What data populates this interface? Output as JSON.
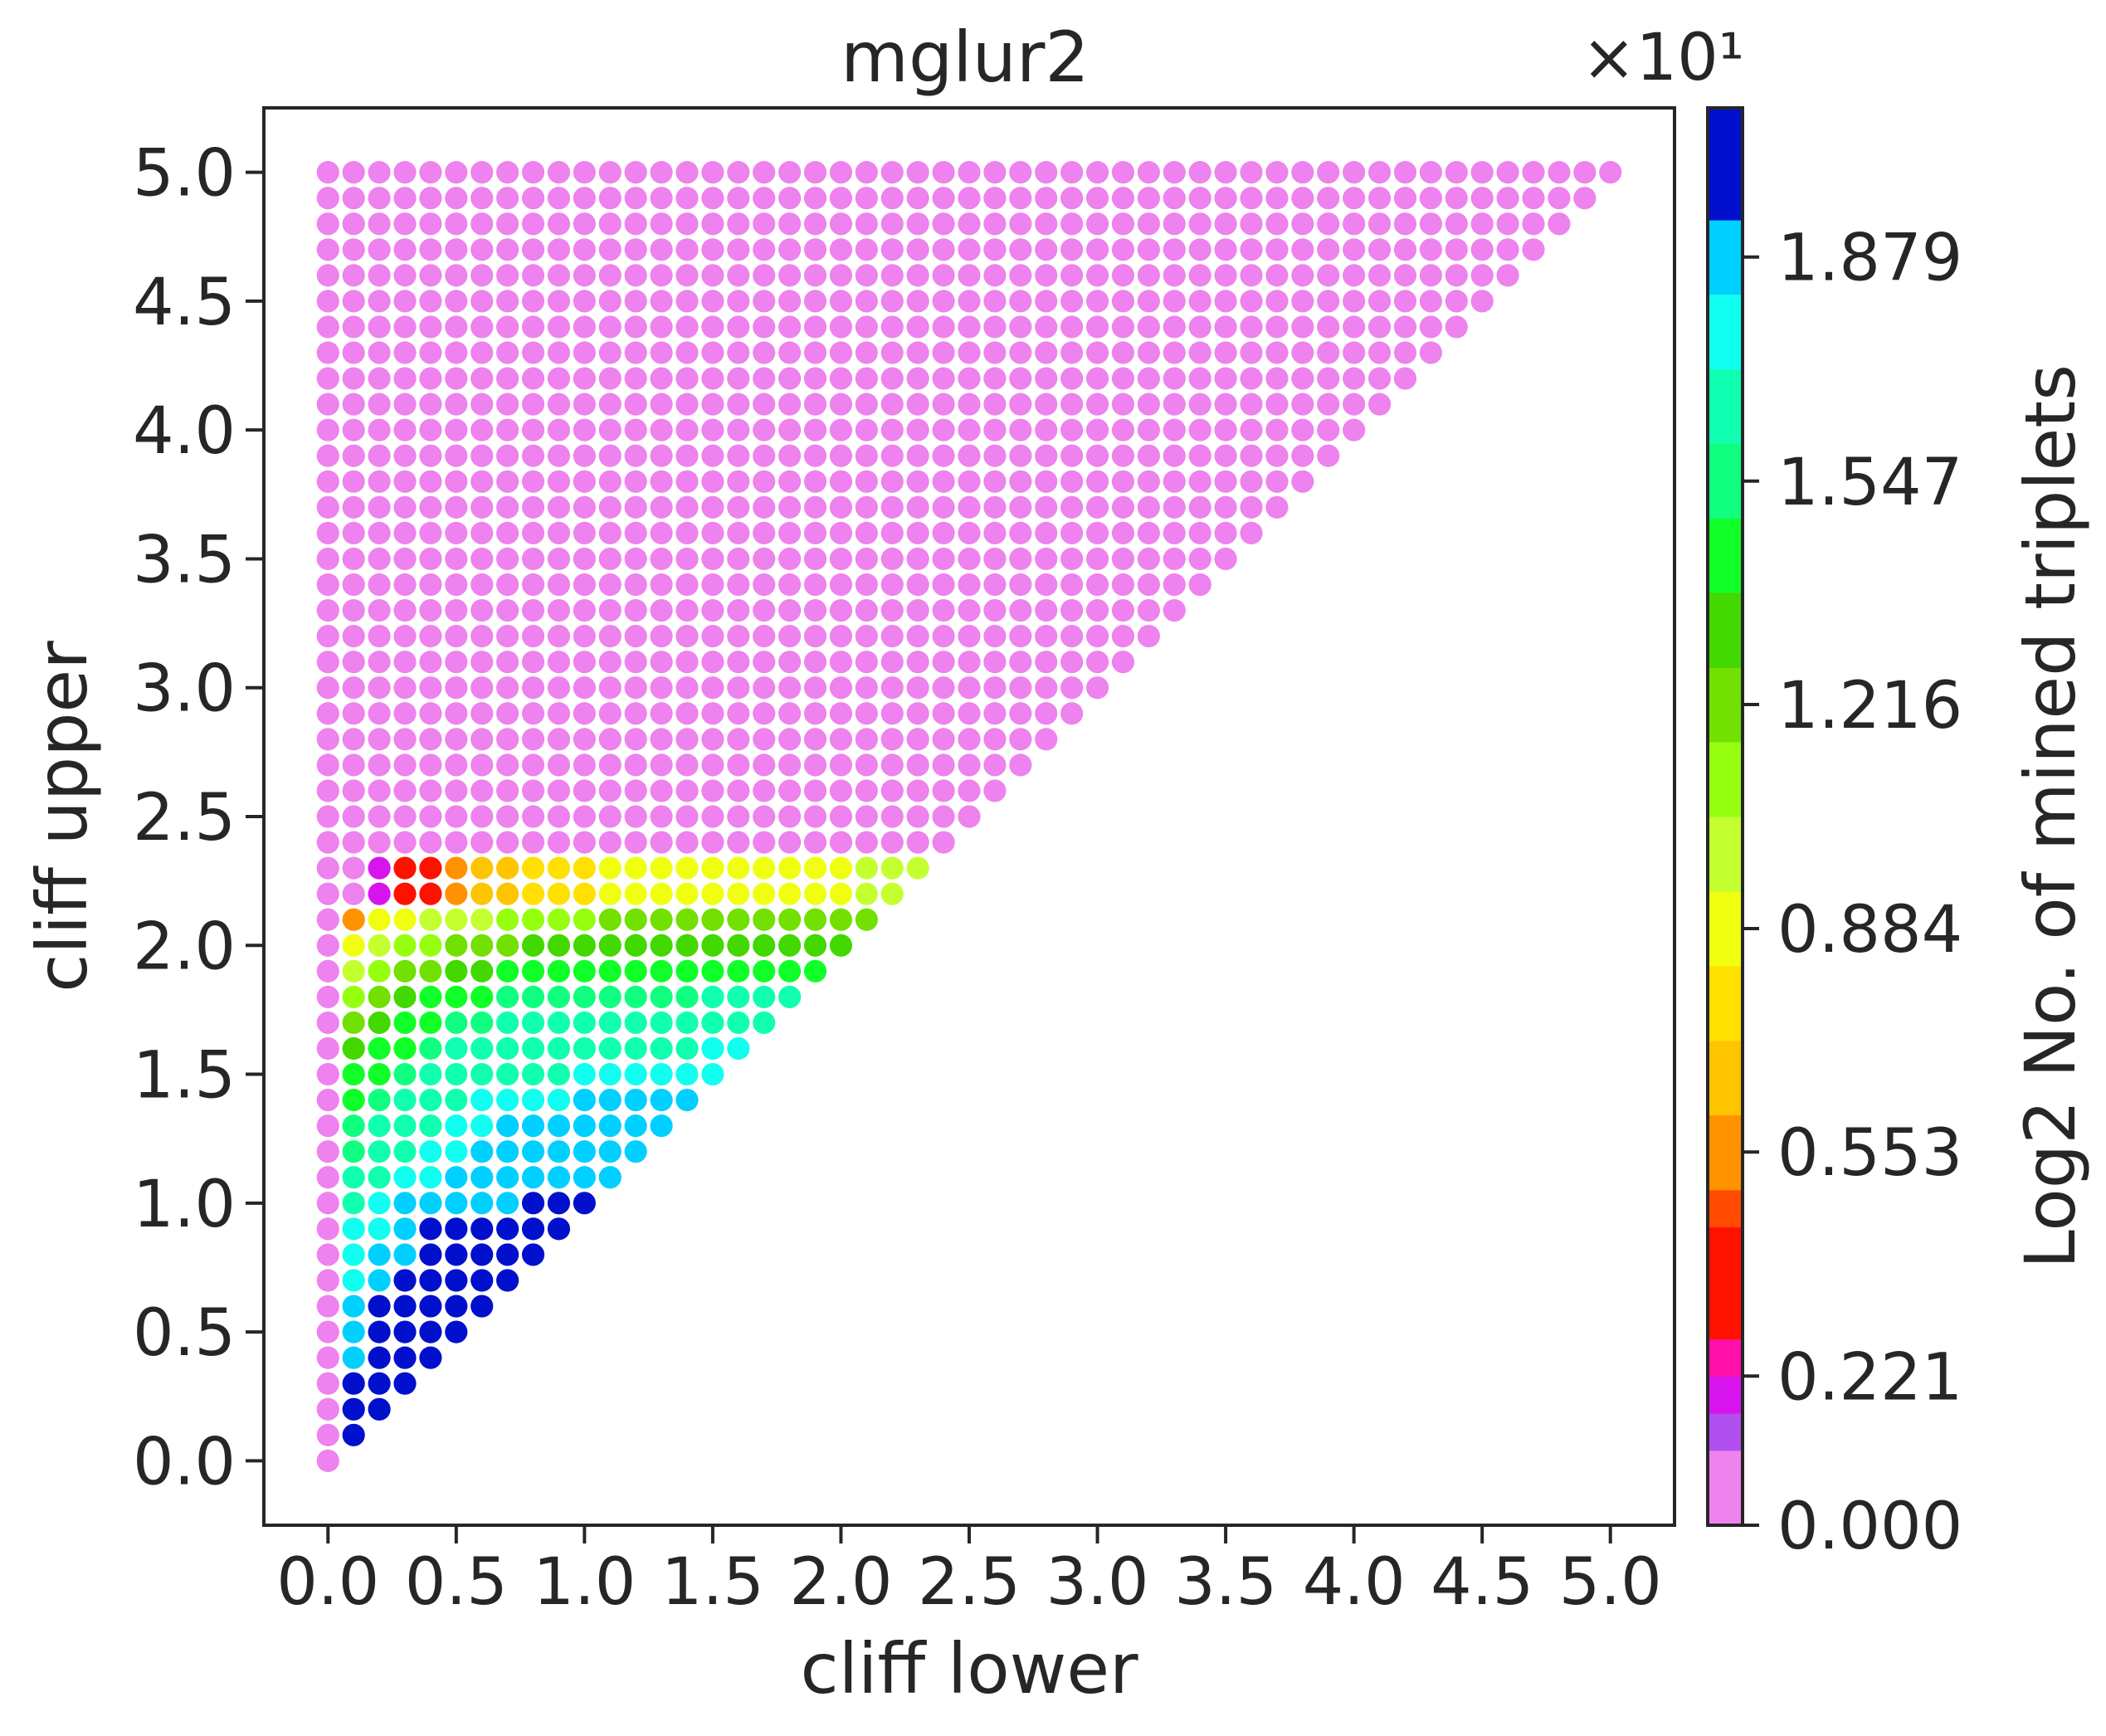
{
  "chart_data": {
    "type": "scatter",
    "title": "mglur2",
    "xlabel": "cliff lower",
    "ylabel": "cliff upper",
    "xlim": [
      -0.25,
      5.25
    ],
    "ylim": [
      -0.25,
      5.25
    ],
    "x_ticks": [
      0.0,
      0.5,
      1.0,
      1.5,
      2.0,
      2.5,
      3.0,
      3.5,
      4.0,
      4.5,
      5.0
    ],
    "x_tick_labels": [
      "0.0",
      "0.5",
      "1.0",
      "1.5",
      "2.0",
      "2.5",
      "3.0",
      "3.5",
      "4.0",
      "4.5",
      "5.0"
    ],
    "y_ticks": [
      0.0,
      0.5,
      1.0,
      1.5,
      2.0,
      2.5,
      3.0,
      3.5,
      4.0,
      4.5,
      5.0
    ],
    "y_tick_labels": [
      "0.0",
      "0.5",
      "1.0",
      "1.5",
      "2.0",
      "2.5",
      "3.0",
      "3.5",
      "4.0",
      "4.5",
      "5.0"
    ],
    "grid": false,
    "marker_step": 0.1,
    "point_set": "all pairs with 0 <= cliff lower <= cliff upper <= 5.0 on a 0.1 grid; points outside the listed rows have value 0.000",
    "colored_rows": [
      {
        "y": 0.1,
        "x_start": 0.1,
        "values": [
          19.8
        ]
      },
      {
        "y": 0.2,
        "x_start": 0.1,
        "values": [
          19.8,
          19.8
        ]
      },
      {
        "y": 0.3,
        "x_start": 0.1,
        "values": [
          19.8,
          19.8,
          19.8
        ]
      },
      {
        "y": 0.4,
        "x_start": 0.1,
        "values": [
          18.6,
          19.8,
          19.8,
          19.8
        ]
      },
      {
        "y": 0.5,
        "x_start": 0.1,
        "values": [
          18.6,
          19.8,
          19.8,
          19.8,
          19.8
        ]
      },
      {
        "y": 0.6,
        "x_start": 0.1,
        "values": [
          18.6,
          19.8,
          19.8,
          19.8,
          19.8,
          19.8
        ]
      },
      {
        "y": 0.7,
        "x_start": 0.1,
        "values": [
          17.5,
          18.6,
          19.8,
          19.8,
          19.8,
          19.8,
          19.8
        ]
      },
      {
        "y": 0.8,
        "x_start": 0.1,
        "values": [
          17.5,
          18.6,
          18.6,
          19.8,
          19.8,
          19.8,
          19.8,
          19.8
        ]
      },
      {
        "y": 0.9,
        "x_start": 0.1,
        "values": [
          17.5,
          17.5,
          18.6,
          19.8,
          19.8,
          19.8,
          19.8,
          19.8,
          19.8
        ]
      },
      {
        "y": 1.0,
        "x_start": 0.1,
        "values": [
          16.6,
          17.5,
          18.6,
          18.6,
          18.6,
          18.6,
          18.6,
          19.8,
          19.8,
          19.8
        ]
      },
      {
        "y": 1.1,
        "x_start": 0.1,
        "values": [
          16.1,
          16.6,
          17.5,
          17.5,
          18.6,
          18.6,
          18.6,
          18.6,
          18.6,
          18.6,
          18.6
        ]
      },
      {
        "y": 1.2,
        "x_start": 0.1,
        "values": [
          15.5,
          16.1,
          16.6,
          17.5,
          17.5,
          18.6,
          18.6,
          18.6,
          18.6,
          18.6,
          18.6,
          18.6
        ]
      },
      {
        "y": 1.3,
        "x_start": 0.1,
        "values": [
          15.5,
          16.1,
          16.6,
          16.6,
          17.5,
          17.5,
          18.6,
          18.6,
          18.6,
          18.6,
          18.6,
          18.6,
          18.6
        ]
      },
      {
        "y": 1.4,
        "x_start": 0.1,
        "values": [
          14.9,
          15.5,
          16.1,
          16.6,
          16.6,
          17.5,
          17.5,
          17.5,
          17.5,
          18.6,
          18.6,
          18.6,
          18.6,
          18.6
        ]
      },
      {
        "y": 1.5,
        "x_start": 0.1,
        "values": [
          14.4,
          14.9,
          15.5,
          16.1,
          16.1,
          16.1,
          16.6,
          16.6,
          16.6,
          17.5,
          17.5,
          17.5,
          17.5,
          17.5,
          17.5
        ]
      },
      {
        "y": 1.6,
        "x_start": 0.1,
        "values": [
          13.8,
          14.4,
          14.9,
          15.5,
          16.1,
          16.1,
          16.1,
          16.1,
          16.1,
          16.1,
          16.1,
          16.6,
          16.6,
          16.6,
          17.5,
          17.5
        ]
      },
      {
        "y": 1.7,
        "x_start": 0.1,
        "values": [
          12.7,
          13.8,
          14.4,
          14.9,
          15.5,
          15.5,
          16.1,
          16.1,
          16.1,
          16.1,
          16.1,
          16.1,
          16.1,
          16.1,
          16.1,
          16.1,
          16.1
        ]
      },
      {
        "y": 1.8,
        "x_start": 0.1,
        "values": [
          10.5,
          12.7,
          13.8,
          14.4,
          14.9,
          14.9,
          15.5,
          15.5,
          15.5,
          15.5,
          15.5,
          15.5,
          15.5,
          15.5,
          16.1,
          16.1,
          16.1,
          16.1
        ]
      },
      {
        "y": 1.9,
        "x_start": 0.1,
        "values": [
          9.4,
          10.5,
          12.7,
          12.7,
          13.8,
          13.8,
          14.4,
          14.4,
          14.4,
          14.4,
          14.4,
          14.4,
          14.9,
          14.9,
          14.9,
          14.9,
          14.9,
          14.9,
          14.9
        ]
      },
      {
        "y": 2.0,
        "x_start": 0.1,
        "values": [
          8.8,
          9.4,
          10.5,
          11.6,
          12.2,
          12.7,
          12.7,
          13.3,
          13.3,
          13.3,
          13.3,
          13.3,
          13.3,
          13.8,
          13.8,
          13.8,
          13.8,
          13.8,
          13.8,
          13.8
        ]
      },
      {
        "y": 2.1,
        "x_start": 0.1,
        "values": [
          5.5,
          8.3,
          8.8,
          9.4,
          9.9,
          9.9,
          10.5,
          10.5,
          11.6,
          11.6,
          12.2,
          12.2,
          12.2,
          12.7,
          12.7,
          12.7,
          12.7,
          12.7,
          12.7,
          12.7,
          12.7
        ]
      },
      {
        "y": 2.2,
        "x_start": 0.1,
        "values": [
          0.0,
          1.8,
          2.9,
          4.0,
          5.5,
          6.1,
          6.1,
          7.2,
          7.7,
          7.7,
          8.3,
          8.3,
          8.3,
          8.3,
          8.3,
          8.3,
          8.3,
          8.3,
          8.8,
          8.8,
          9.4,
          9.4
        ]
      },
      {
        "y": 2.3,
        "x_start": 0.1,
        "values": [
          0.0,
          1.8,
          2.9,
          4.0,
          5.5,
          6.1,
          6.1,
          7.2,
          7.7,
          7.7,
          8.3,
          8.3,
          8.3,
          8.3,
          8.3,
          8.3,
          8.3,
          8.3,
          8.8,
          8.8,
          9.4,
          9.4,
          9.4
        ]
      }
    ],
    "colorbar": {
      "label": "Log2 No. of mined triplets",
      "offset_text": "×10¹",
      "range": [
        0.0,
        2.1
      ],
      "ticks": [
        0.0,
        0.221,
        0.553,
        0.884,
        1.216,
        1.547,
        1.879
      ],
      "tick_labels": [
        "0.000",
        "0.221",
        "0.553",
        "0.884",
        "1.216",
        "1.547",
        "1.879"
      ],
      "boundaries": [
        0.0,
        0.111,
        0.166,
        0.221,
        0.276,
        0.442,
        0.497,
        0.608,
        0.718,
        0.829,
        0.939,
        1.05,
        1.161,
        1.271,
        1.382,
        1.492,
        1.603,
        1.713,
        1.824,
        1.934,
        2.1
      ],
      "colors": [
        "#ee82ee",
        "#b050ee",
        "#d814ee",
        "#ff10a8",
        "#ff1100",
        "#ff4a00",
        "#ff9200",
        "#ffc400",
        "#ffe000",
        "#f0ff10",
        "#c4ff30",
        "#96ff10",
        "#72e000",
        "#42d800",
        "#10ff28",
        "#10ff80",
        "#10ffb0",
        "#10fff0",
        "#00d0ff",
        "#0010cc"
      ]
    }
  }
}
